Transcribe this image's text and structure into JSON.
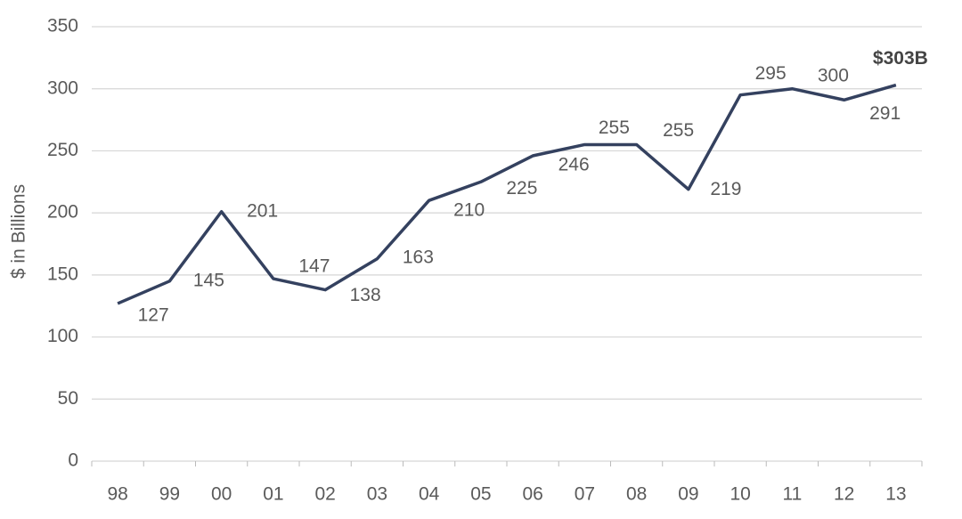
{
  "chart_data": {
    "type": "line",
    "y_label": "$ in Billions",
    "categories": [
      "98",
      "99",
      "00",
      "01",
      "02",
      "03",
      "04",
      "05",
      "06",
      "07",
      "08",
      "09",
      "10",
      "11",
      "12",
      "13"
    ],
    "series": [
      {
        "color": "#34415f",
        "values": [
          127,
          145,
          201,
          147,
          138,
          163,
          210,
          225,
          246,
          255,
          255,
          219,
          295,
          300,
          291,
          303
        ],
        "value_labels": [
          "127",
          "145",
          "201",
          "147",
          "138",
          "163",
          "210",
          "225",
          "246",
          "255",
          "255",
          "219",
          "295",
          "300",
          "291",
          "$303B"
        ]
      }
    ],
    "ylim": [
      0,
      350
    ],
    "yticks": [
      0,
      50,
      100,
      150,
      200,
      250,
      300,
      350
    ],
    "grid": true
  }
}
